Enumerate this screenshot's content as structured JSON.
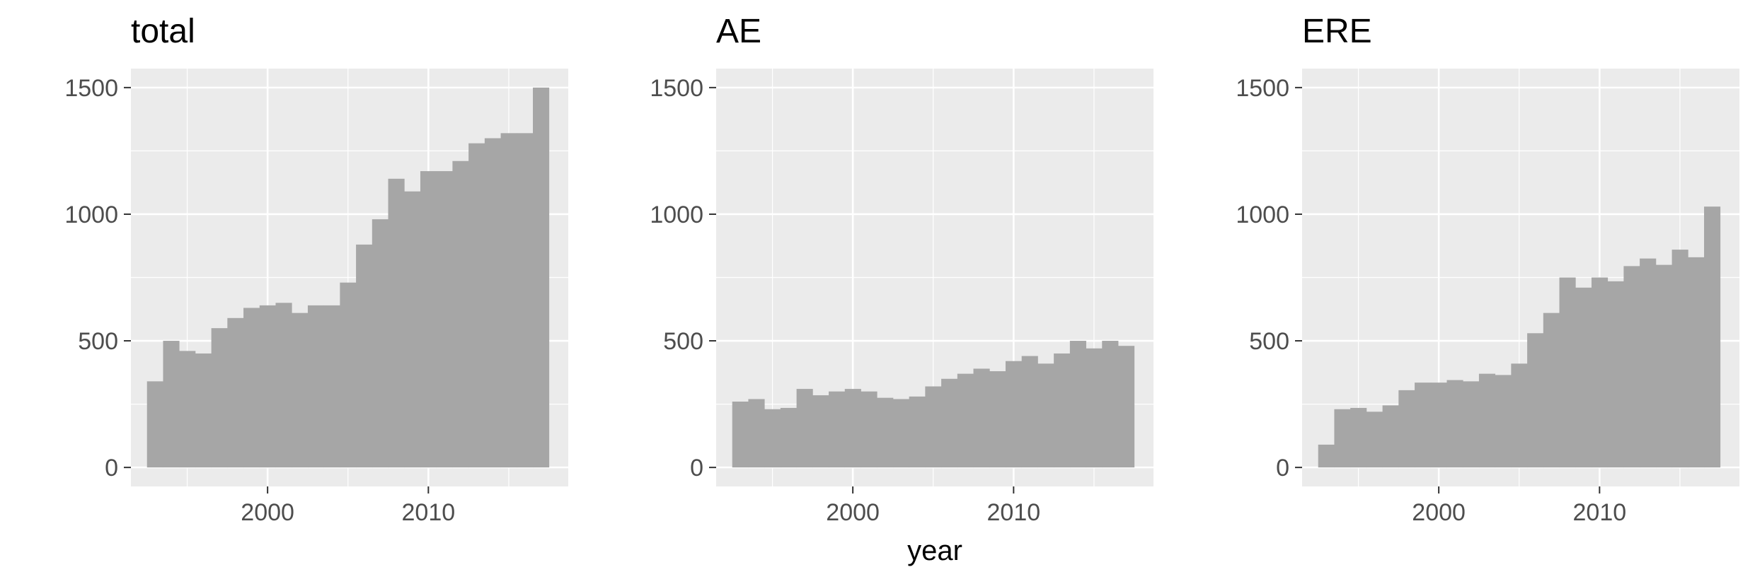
{
  "colors": {
    "panel_background": "#ebebeb",
    "grid": "#ffffff",
    "bar": "#a6a6a6",
    "tick_text": "#4d4d4d",
    "title_text": "#000000"
  },
  "chart_data": {
    "type": "bar",
    "xlabel": "year",
    "ylabel": "",
    "x_breaks": [
      2000,
      2010
    ],
    "y_breaks": [
      0,
      500,
      1000,
      1500
    ],
    "xlim": [
      1991.5,
      2018.7
    ],
    "ylim": [
      -75,
      1575
    ],
    "grid": true,
    "x": [
      1993,
      1994,
      1995,
      1996,
      1997,
      1998,
      1999,
      2000,
      2001,
      2002,
      2003,
      2004,
      2005,
      2006,
      2007,
      2008,
      2009,
      2010,
      2011,
      2012,
      2013,
      2014,
      2015,
      2016,
      2017
    ],
    "panels": [
      {
        "title": "total",
        "values": [
          340,
          500,
          460,
          450,
          550,
          590,
          630,
          640,
          650,
          610,
          640,
          640,
          730,
          880,
          980,
          1140,
          1090,
          1170,
          1170,
          1210,
          1280,
          1300,
          1320,
          1320,
          1500
        ]
      },
      {
        "title": "AE",
        "values": [
          260,
          270,
          230,
          235,
          310,
          285,
          300,
          310,
          300,
          275,
          270,
          280,
          320,
          350,
          370,
          390,
          380,
          420,
          440,
          410,
          450,
          500,
          470,
          500,
          480
        ]
      },
      {
        "title": "ERE",
        "values": [
          90,
          230,
          235,
          220,
          245,
          305,
          335,
          335,
          345,
          340,
          370,
          365,
          410,
          530,
          610,
          750,
          710,
          750,
          735,
          795,
          825,
          800,
          860,
          830,
          1030
        ]
      }
    ]
  }
}
